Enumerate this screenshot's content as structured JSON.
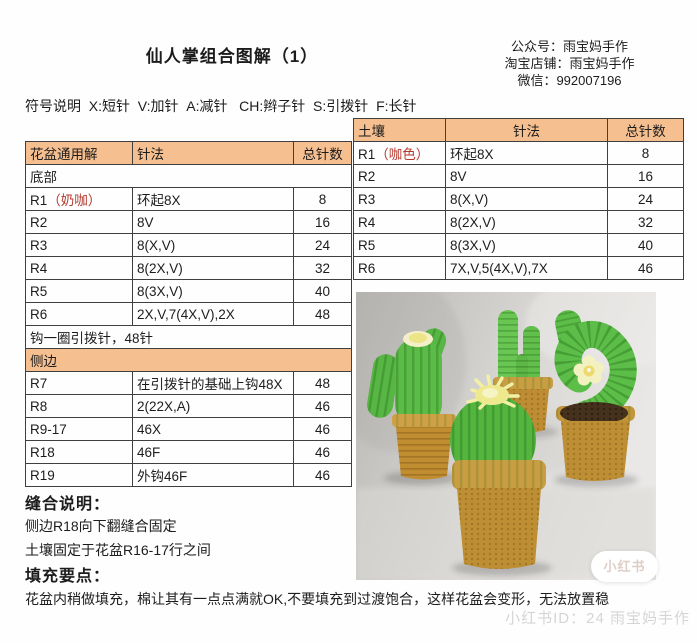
{
  "page": {
    "title": "仙人掌组合图解（1）",
    "contact": {
      "line1": "公众号：雨宝妈手作",
      "line2": "淘宝店铺：雨宝妈手作",
      "line3": "微信：992007196"
    },
    "legend": "符号说明  X:短针  V:加针  A:减针   CH:辫子针  S:引拨针  F:长针"
  },
  "left_table": {
    "columns": [
      "花盆通用解",
      "针法",
      "总针数"
    ],
    "rows": [
      {
        "type": "span",
        "text": "底部"
      },
      {
        "type": "data",
        "label": "R1",
        "note": "（奶咖）",
        "stitch": "环起8X",
        "count": "8"
      },
      {
        "type": "data",
        "label": "R2",
        "note": "",
        "stitch": "8V",
        "count": "16"
      },
      {
        "type": "data",
        "label": "R3",
        "note": "",
        "stitch": "8(X,V)",
        "count": "24"
      },
      {
        "type": "data",
        "label": "R4",
        "note": "",
        "stitch": "8(2X,V)",
        "count": "32"
      },
      {
        "type": "data",
        "label": "R5",
        "note": "",
        "stitch": "8(3X,V)",
        "count": "40"
      },
      {
        "type": "data",
        "label": "R6",
        "note": "",
        "stitch": "2X,V,7(4X,V),2X",
        "count": "48"
      },
      {
        "type": "span",
        "text": "钩一圈引拨针，48针"
      },
      {
        "type": "span",
        "text": "侧边",
        "highlight": true
      },
      {
        "type": "data",
        "label": "R7",
        "note": "",
        "stitch": "在引拨针的基础上钩48X",
        "count": "48"
      },
      {
        "type": "data",
        "label": "R8",
        "note": "",
        "stitch": "2(22X,A)",
        "count": "46"
      },
      {
        "type": "data",
        "label": "R9-17",
        "note": "",
        "stitch": "46X",
        "count": "46"
      },
      {
        "type": "data",
        "label": "R18",
        "note": "",
        "stitch": "46F",
        "count": "46"
      },
      {
        "type": "data",
        "label": "R19",
        "note": "",
        "stitch": "外钩46F",
        "count": "46"
      }
    ]
  },
  "right_table": {
    "columns": [
      "土壤",
      "针法",
      "总针数"
    ],
    "rows": [
      {
        "type": "data",
        "label": "R1",
        "note": "（咖色）",
        "stitch": "环起8X",
        "count": "8"
      },
      {
        "type": "data",
        "label": "R2",
        "note": "",
        "stitch": "8V",
        "count": "16"
      },
      {
        "type": "data",
        "label": "R3",
        "note": "",
        "stitch": "8(X,V)",
        "count": "24"
      },
      {
        "type": "data",
        "label": "R4",
        "note": "",
        "stitch": "8(2X,V)",
        "count": "32"
      },
      {
        "type": "data",
        "label": "R5",
        "note": "",
        "stitch": "8(3X,V)",
        "count": "40"
      },
      {
        "type": "data",
        "label": "R6",
        "note": "",
        "stitch": "7X,V,5(4X,V),7X",
        "count": "46"
      }
    ]
  },
  "notes": {
    "sewing_title": "缝合说明：",
    "sewing_line1": "侧边R18向下翻缝合固定",
    "sewing_line2": "土壤固定于花盆R16-17行之间",
    "stuffing_title": "填充要点：",
    "stuffing_line": "花盆内稍做填充，棉让其有一点点满就OK,不要填充到过渡饱合，这样花盆会变形，无法放置稳"
  },
  "photo": {
    "badge": "小红书",
    "watermark": "小红书ID：24 雨宝妈手作"
  },
  "colors": {
    "table_header_bg": "#f6bf90",
    "accent_red": "#b5382e",
    "cactus_green": "#57b843",
    "pot_tan": "#bf8e33",
    "soil_brown": "#46311c",
    "flower_yellow": "#f0eca0"
  }
}
